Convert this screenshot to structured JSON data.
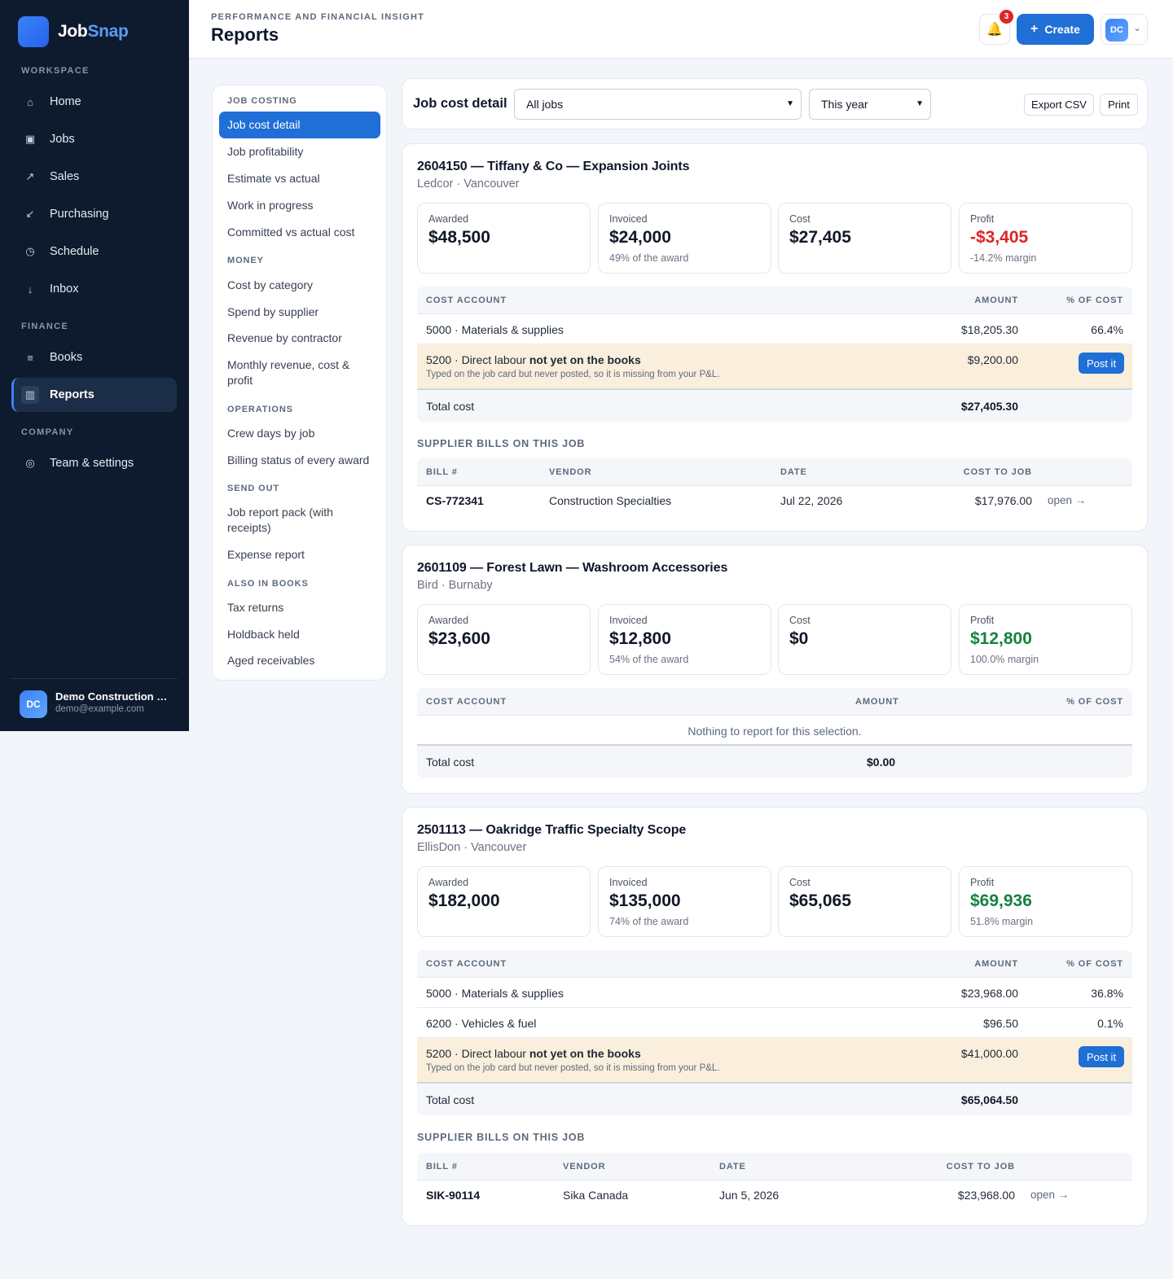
{
  "app": {
    "name_a": "Job",
    "name_b": "Snap"
  },
  "sidebar": {
    "sections": {
      "workspace": "WORKSPACE",
      "finance": "FINANCE",
      "company": "COMPANY"
    },
    "items": [
      {
        "label": "Home",
        "icon": "⌂"
      },
      {
        "label": "Jobs",
        "icon": "▣"
      },
      {
        "label": "Sales",
        "icon": "↗"
      },
      {
        "label": "Purchasing",
        "icon": "↙"
      },
      {
        "label": "Schedule",
        "icon": "◷"
      },
      {
        "label": "Inbox",
        "icon": "↓"
      },
      {
        "label": "Books",
        "icon": "≡"
      },
      {
        "label": "Reports",
        "icon": "▥"
      },
      {
        "label": "Team & settings",
        "icon": "◎"
      }
    ],
    "user": {
      "initials": "DC",
      "name": "Demo Construction Ltd.",
      "email": "demo@example.com"
    }
  },
  "header": {
    "eyebrow": "PERFORMANCE AND FINANCIAL INSIGHT",
    "title": "Reports",
    "notifications": "3",
    "bell_icon": "🔔",
    "create_label": "Create",
    "create_icon": "+",
    "user_initials": "DC",
    "chevron": "⌄"
  },
  "report_nav": {
    "sections": {
      "job_costing": "JOB COSTING",
      "money": "MONEY",
      "operations": "OPERATIONS",
      "send_out": "SEND OUT",
      "also_in_books": "ALSO IN BOOKS"
    },
    "items": {
      "job_cost_detail": "Job cost detail",
      "job_profitability": "Job profitability",
      "estimate_vs_actual": "Estimate vs actual",
      "work_in_progress": "Work in progress",
      "committed_vs_actual": "Committed vs actual cost",
      "cost_by_category": "Cost by category",
      "spend_by_supplier": "Spend by supplier",
      "revenue_by_contractor": "Revenue by contractor",
      "monthly_revenue": "Monthly revenue, cost & profit",
      "crew_days": "Crew days by job",
      "billing_status": "Billing status of every award",
      "job_report_pack": "Job report pack (with receipts)",
      "expense_report": "Expense report",
      "tax_returns": "Tax returns",
      "holdback_held": "Holdback held",
      "aged_receivables": "Aged receivables"
    }
  },
  "filter": {
    "title": "Job cost detail",
    "jobs_select": "All jobs",
    "period_select": "This year",
    "export_label": "Export CSV",
    "print_label": "Print"
  },
  "labels": {
    "awarded": "Awarded",
    "invoiced": "Invoiced",
    "cost": "Cost",
    "profit": "Profit",
    "cost_account": "COST ACCOUNT",
    "amount": "AMOUNT",
    "pct_cost": "% OF COST",
    "total_cost": "Total cost",
    "bills_title": "SUPPLIER BILLS ON THIS JOB",
    "bill_no": "BILL #",
    "vendor": "VENDOR",
    "date": "DATE",
    "cost_to_job": "COST TO JOB",
    "open": "open →",
    "post_it": "Post it",
    "not_on_books": "not yet on the books",
    "warn_note": "Typed on the job card but never posted, so it is missing from your P&L.",
    "empty": "Nothing to report for this selection."
  },
  "jobs": [
    {
      "title": "2604150 — Tiffany & Co — Expansion Joints",
      "sub": "Ledcor · Vancouver",
      "awarded": "$48,500",
      "invoiced": "$24,000",
      "invoiced_note": "49% of the award",
      "cost": "$27,405",
      "profit": "-$3,405",
      "profit_note": "-14.2% margin",
      "rows": [
        {
          "account": "5000 · Materials & supplies",
          "amount": "$18,205.30",
          "pct": "66.4%"
        }
      ],
      "warn": {
        "account": "5200 · Direct labour",
        "amount": "$9,200.00"
      },
      "total": "$27,405.30",
      "bills": [
        {
          "no": "CS-772341",
          "vendor": "Construction Specialties",
          "date": "Jul 22, 2026",
          "amount": "$17,976.00"
        }
      ]
    },
    {
      "title": "2601109 — Forest Lawn — Washroom Accessories",
      "sub": "Bird · Burnaby",
      "awarded": "$23,600",
      "invoiced": "$12,800",
      "invoiced_note": "54% of the award",
      "cost": "$0",
      "profit": "$12,800",
      "profit_note": "100.0% margin",
      "total": "$0.00"
    },
    {
      "title": "2501113 — Oakridge Traffic Specialty Scope",
      "sub": "EllisDon · Vancouver",
      "awarded": "$182,000",
      "invoiced": "$135,000",
      "invoiced_note": "74% of the award",
      "cost": "$65,065",
      "profit": "$69,936",
      "profit_note": "51.8% margin",
      "rows": [
        {
          "account": "5000 · Materials & supplies",
          "amount": "$23,968.00",
          "pct": "36.8%"
        },
        {
          "account": "6200 · Vehicles & fuel",
          "amount": "$96.50",
          "pct": "0.1%"
        }
      ],
      "warn": {
        "account": "5200 · Direct labour",
        "amount": "$41,000.00"
      },
      "total": "$65,064.50",
      "bills": [
        {
          "no": "SIK-90114",
          "vendor": "Sika Canada",
          "date": "Jun 5, 2026",
          "amount": "$23,968.00"
        }
      ]
    }
  ],
  "colors": {
    "accent": "#1f6fd6",
    "sidebar": "#0e1b2e",
    "negative": "#dc2626",
    "positive": "#16823f",
    "warn_row": "#faefdc"
  }
}
